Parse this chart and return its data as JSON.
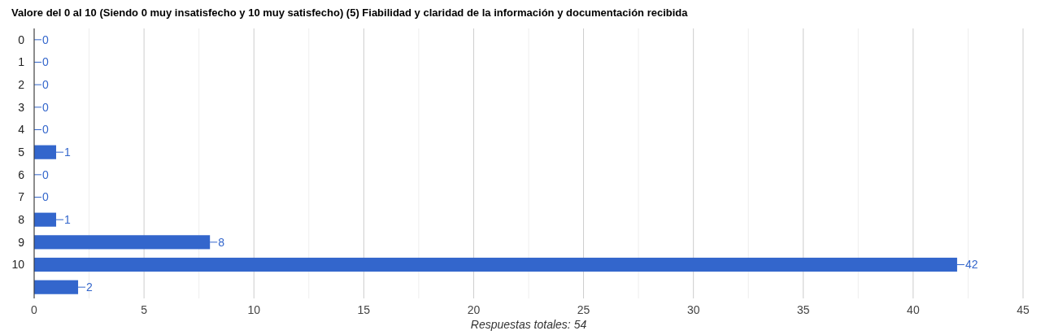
{
  "chart_data": {
    "type": "bar",
    "orientation": "horizontal",
    "title": "Valore del 0 al 10 (Siendo 0 muy insatisfecho y 10 muy satisfecho) (5) Fiabilidad y claridad de la información y documentación recibida",
    "xlabel": "Respuestas totales: 54",
    "categories": [
      "0",
      "1",
      "2",
      "3",
      "4",
      "5",
      "6",
      "7",
      "8",
      "9",
      "10",
      null
    ],
    "values": [
      0,
      0,
      0,
      0,
      0,
      1,
      0,
      0,
      1,
      8,
      42,
      2
    ],
    "color": "#3366cc",
    "xlim": [
      0,
      45
    ],
    "xticks": [
      0,
      {
        "value": 2.5,
        "label": null
      },
      5,
      {
        "value": 7.5,
        "label": null
      },
      10,
      {
        "value": 12.5,
        "label": null
      },
      15,
      {
        "value": 17.5,
        "label": null
      },
      20,
      {
        "value": 22.5,
        "label": null
      },
      25,
      {
        "value": 27.5,
        "label": null
      },
      30,
      {
        "value": 32.5,
        "label": null
      },
      35,
      {
        "value": 37.5,
        "label": null
      },
      40,
      {
        "value": 42.5,
        "label": null
      },
      45
    ],
    "grid": "x",
    "data_labels": true
  }
}
